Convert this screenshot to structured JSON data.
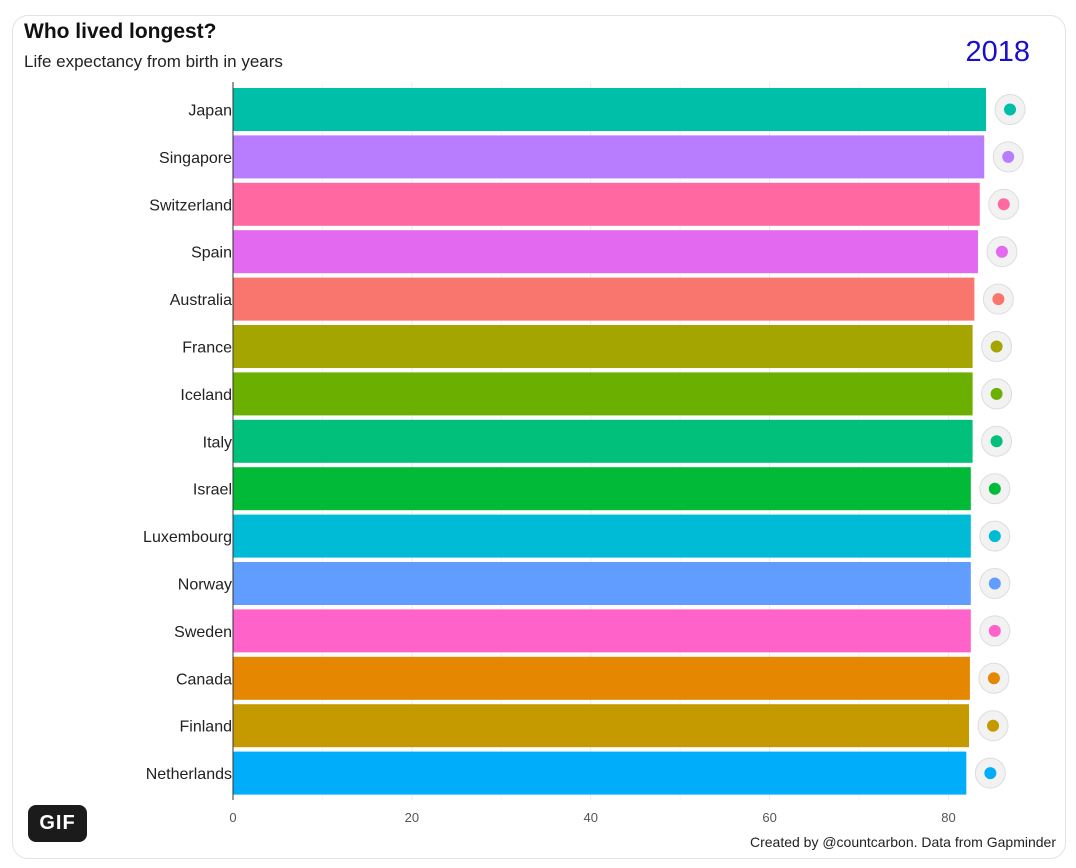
{
  "header": {
    "title": "Who lived longest?",
    "subtitle": "Life expectancy from birth in years",
    "year": "2018"
  },
  "footer": {
    "credit": "Created by @countcarbon. Data from Gapminder",
    "gif_badge": "GIF"
  },
  "chart_data": {
    "type": "bar",
    "orientation": "horizontal",
    "title": "Who lived longest?",
    "subtitle": "Life expectancy from birth in years",
    "year": "2018",
    "categories": [
      "Japan",
      "Singapore",
      "Switzerland",
      "Spain",
      "Australia",
      "France",
      "Iceland",
      "Italy",
      "Israel",
      "Luxembourg",
      "Norway",
      "Sweden",
      "Canada",
      "Finland",
      "Netherlands"
    ],
    "values": [
      84.2,
      84.0,
      83.5,
      83.3,
      82.9,
      82.7,
      82.7,
      82.7,
      82.5,
      82.5,
      82.5,
      82.5,
      82.4,
      82.3,
      82.0
    ],
    "colors": [
      "#00bfa8",
      "#b77cff",
      "#ff68a1",
      "#e369f1",
      "#f8766d",
      "#a5a500",
      "#6baf00",
      "#00c07c",
      "#00ba38",
      "#00bbd5",
      "#619cff",
      "#ff62c9",
      "#e58700",
      "#c49a00",
      "#00adfa"
    ],
    "flag_icons": [
      "flag-japan-icon",
      "flag-singapore-icon",
      "flag-switzerland-icon",
      "flag-spain-icon",
      "flag-australia-icon",
      "flag-france-icon",
      "flag-iceland-icon",
      "flag-italy-icon",
      "flag-israel-icon",
      "flag-luxembourg-icon",
      "flag-norway-icon",
      "flag-sweden-icon",
      "flag-canada-icon",
      "flag-finland-icon",
      "flag-netherlands-icon"
    ],
    "xticks": [
      "0",
      "20",
      "40",
      "60",
      "80"
    ],
    "xlim": [
      0,
      88
    ],
    "grid": true,
    "legend": "none"
  }
}
